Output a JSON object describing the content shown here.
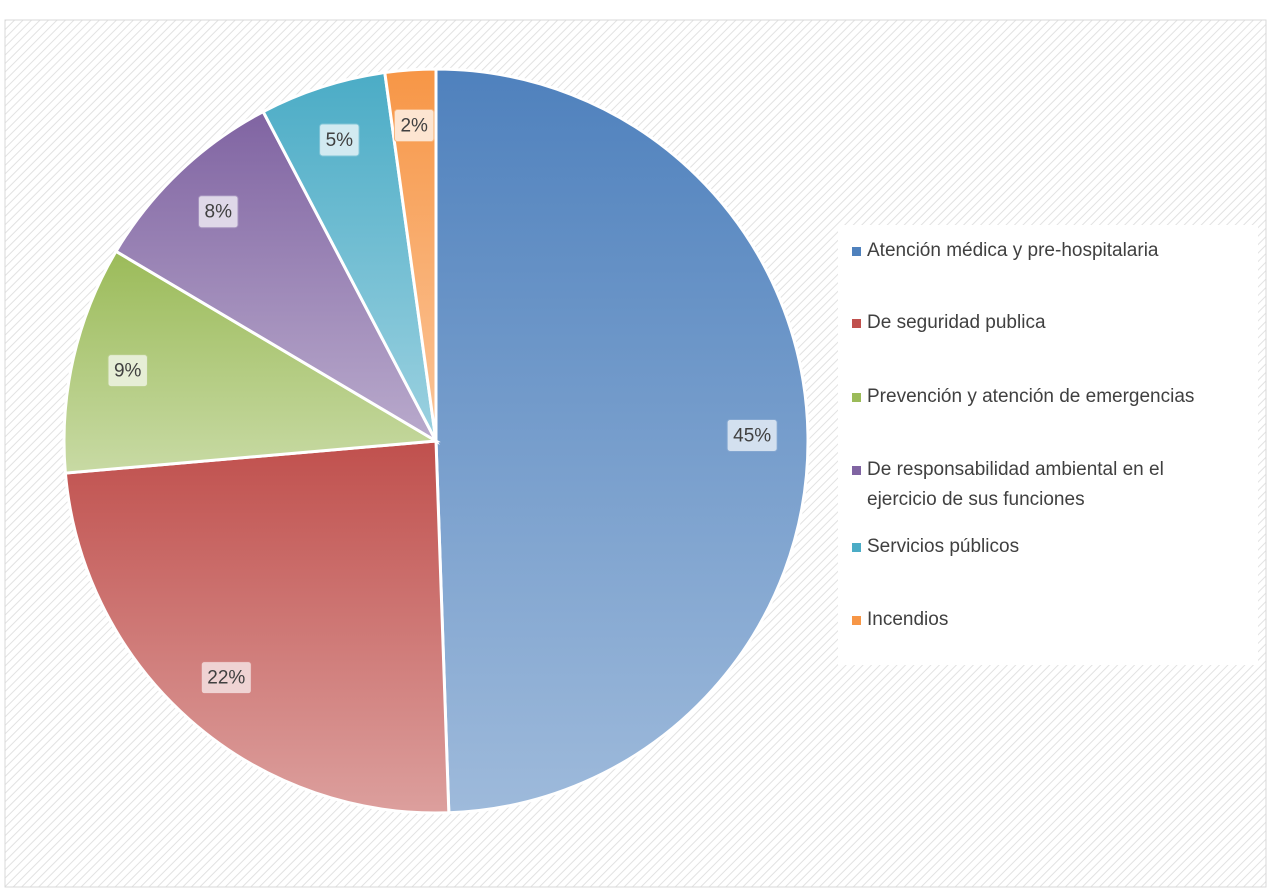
{
  "chart_data": {
    "type": "pie",
    "categories": [
      "Atención médica y pre-hospitalaria",
      "De seguridad publica",
      "Prevención y atención de emergencias",
      "De responsabilidad ambiental en el ejercicio de sus funciones",
      "Servicios públicos",
      "Incendios"
    ],
    "values": [
      45,
      22,
      9,
      8,
      5,
      2
    ],
    "value_labels": [
      "45%",
      "22%",
      "9%",
      "8%",
      "5%",
      "2%"
    ],
    "colors": [
      "#4f81bd",
      "#c0504d",
      "#9bbb59",
      "#8064a2",
      "#4bacc6",
      "#f79646"
    ],
    "legend": "right"
  }
}
